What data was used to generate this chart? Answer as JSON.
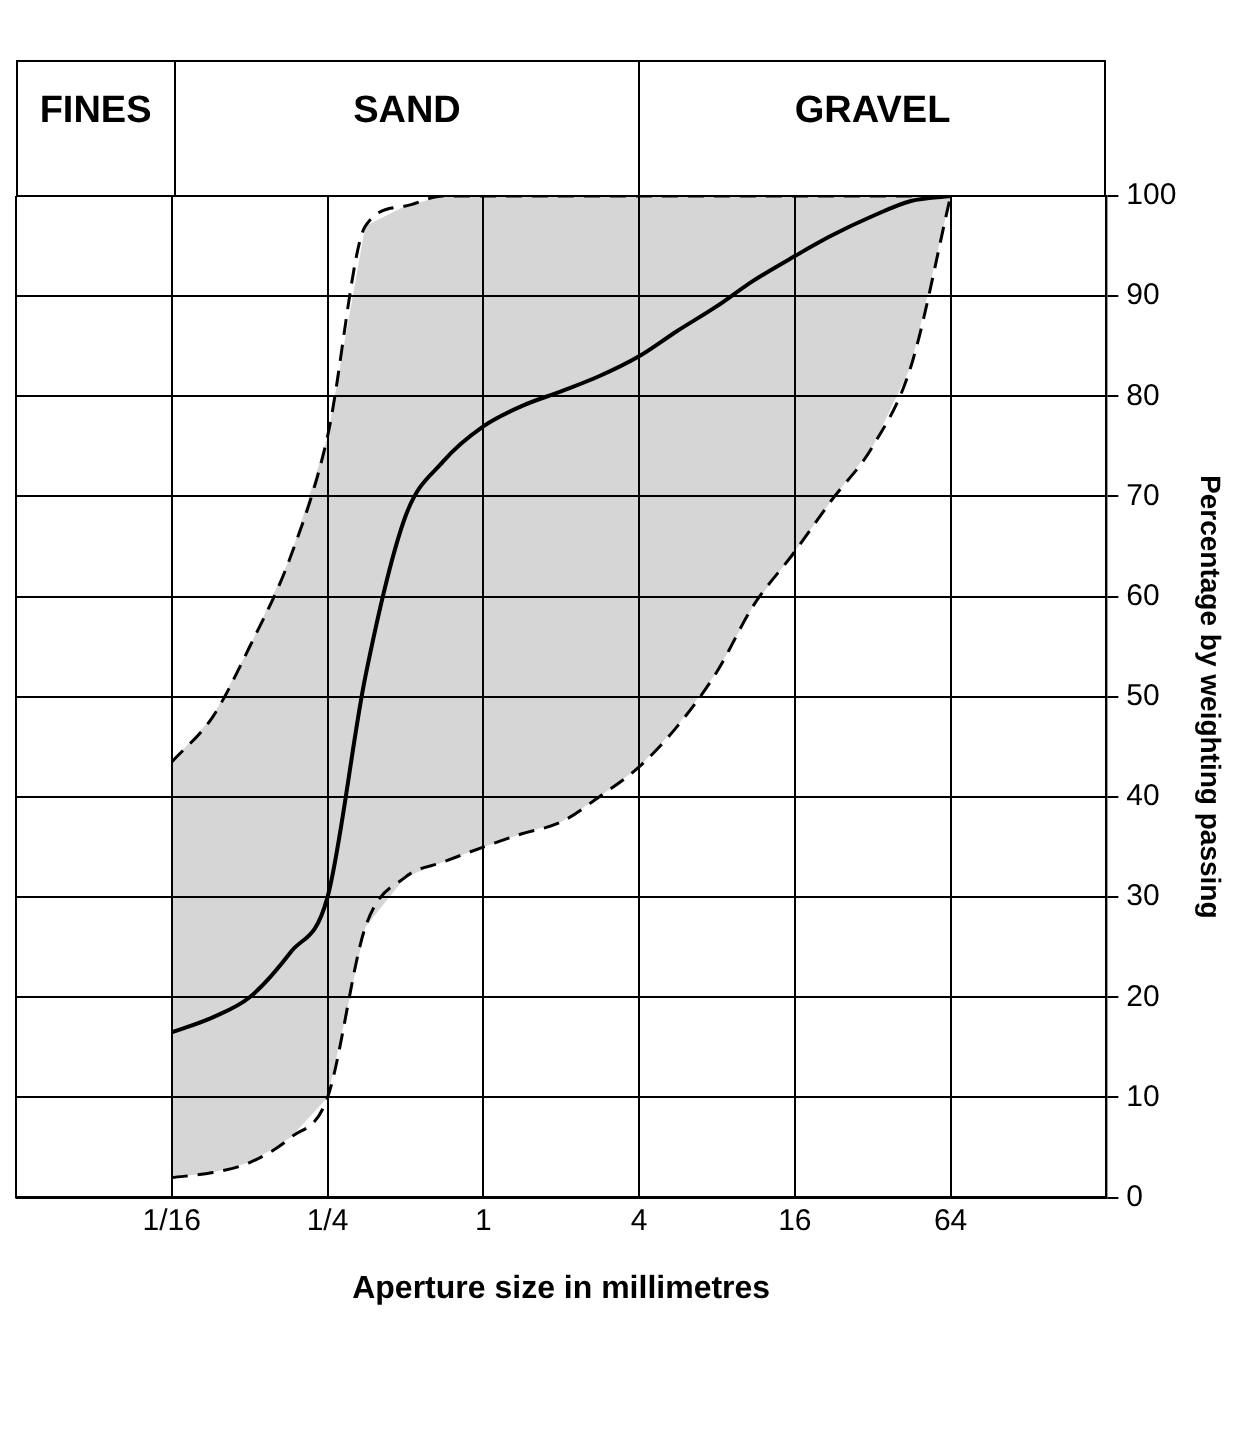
{
  "chart_data": {
    "type": "line",
    "xlabel": "Aperture size in millimetres",
    "ylabel": "Percentage by weighting passing",
    "x": [
      0.0625,
      0.09,
      0.125,
      0.18,
      0.25,
      0.35,
      0.5,
      0.7,
      1,
      1.4,
      2,
      2.8,
      4,
      5.6,
      8,
      11,
      16,
      22,
      32,
      45,
      64
    ],
    "series": [
      {
        "color": "#000000",
        "values": [
          16.5,
          18,
          20,
          24.5,
          30,
          52,
          68,
          73.5,
          77,
          79,
          80.5,
          82,
          84,
          86.5,
          89,
          91.5,
          94,
          96,
          98,
          99.5,
          100
        ],
        "lower": [
          2,
          2.5,
          3.5,
          6,
          10,
          27,
          32,
          33.5,
          35,
          36.3,
          37.5,
          40,
          43,
          47,
          52.5,
          59,
          64.5,
          69.5,
          75,
          83,
          100
        ],
        "upper": [
          43.5,
          48,
          55,
          64,
          76,
          97,
          99,
          100,
          100,
          100,
          100,
          100,
          100,
          100,
          100,
          100,
          100,
          100,
          100,
          100,
          100
        ]
      },
      {
        "color": "#000000",
        "line_style": "dashed",
        "values": [
          2,
          2.5,
          3.5,
          6,
          10,
          27,
          32,
          33.5,
          35,
          36.3,
          37.5,
          40,
          43,
          47,
          52.5,
          59,
          64.5,
          69.5,
          75,
          83,
          100
        ]
      },
      {
        "color": "#000000",
        "line_style": "dashed",
        "values": [
          43.5,
          48,
          55,
          64,
          76,
          97,
          99,
          100,
          100,
          100,
          100,
          100,
          100,
          100,
          100,
          100,
          100,
          100,
          100,
          100,
          100
        ]
      }
    ],
    "log": "x",
    "xlim": [
      0.015625,
      256
    ],
    "xticks": [
      {
        "value": 0.015625,
        "label": null
      },
      {
        "value": 0.0625,
        "label": "1/16"
      },
      {
        "value": 0.25,
        "label": "1/4"
      },
      1,
      4,
      16,
      64,
      {
        "value": 256,
        "label": null
      }
    ],
    "ylim": [
      0,
      100
    ],
    "yticks": [
      0,
      10,
      20,
      30,
      40,
      50,
      60,
      70,
      80,
      90,
      100
    ],
    "annotations": [
      "FINES",
      "SAND",
      "GRAVEL"
    ],
    "grid": true,
    "legend": false,
    "marker": "none",
    "line_style": "solid"
  }
}
